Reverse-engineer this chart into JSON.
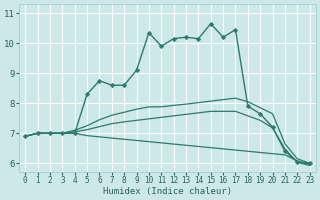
{
  "xlabel": "Humidex (Indice chaleur)",
  "background_color": "#cde8e8",
  "grid_color": "#ffffff",
  "line_color": "#2d7a6e",
  "xlim": [
    -0.5,
    23.5
  ],
  "ylim": [
    5.7,
    11.3
  ],
  "yticks": [
    6,
    7,
    8,
    9,
    10,
    11
  ],
  "xticks": [
    0,
    1,
    2,
    3,
    4,
    5,
    6,
    7,
    8,
    9,
    10,
    11,
    12,
    13,
    14,
    15,
    16,
    17,
    18,
    19,
    20,
    21,
    22,
    23
  ],
  "series_main": [
    6.9,
    7.0,
    7.0,
    7.0,
    7.0,
    8.3,
    8.75,
    8.6,
    8.6,
    9.1,
    10.35,
    9.9,
    10.15,
    10.2,
    10.15,
    10.65,
    10.2,
    10.45,
    7.9,
    7.65,
    7.2,
    6.4,
    6.05,
    6.0
  ],
  "series_upper": [
    6.9,
    7.0,
    7.0,
    7.0,
    7.1,
    7.25,
    7.45,
    7.6,
    7.7,
    7.8,
    7.88,
    7.88,
    7.93,
    7.97,
    8.02,
    8.07,
    8.12,
    8.17,
    8.05,
    7.85,
    7.65,
    6.65,
    6.15,
    6.0
  ],
  "series_mid": [
    6.9,
    7.0,
    7.0,
    7.0,
    7.05,
    7.12,
    7.22,
    7.32,
    7.38,
    7.43,
    7.48,
    7.53,
    7.58,
    7.63,
    7.68,
    7.73,
    7.73,
    7.73,
    7.58,
    7.43,
    7.18,
    6.48,
    6.03,
    5.93
  ],
  "series_lower": [
    6.9,
    7.0,
    7.0,
    7.0,
    7.0,
    6.92,
    6.88,
    6.84,
    6.8,
    6.76,
    6.72,
    6.68,
    6.64,
    6.6,
    6.56,
    6.52,
    6.48,
    6.44,
    6.4,
    6.36,
    6.32,
    6.28,
    6.08,
    5.95
  ]
}
